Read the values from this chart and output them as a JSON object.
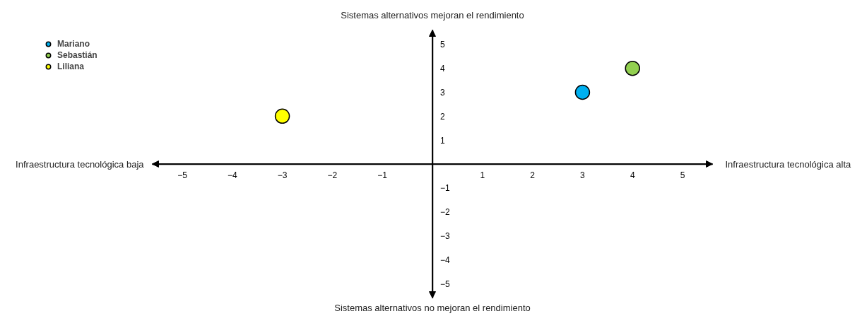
{
  "chart_data": {
    "type": "scatter",
    "xlabel": "Infraestructura tecnológica alta",
    "ylabel": "Sistemas alternativos mejoran el rendimiento",
    "annotations": [
      "Infraestructura tecnológica baja",
      "Sistemas alternativos no mejoran el rendimiento"
    ],
    "series": [
      {
        "name": "Mariano",
        "color": "#00b0f0",
        "x": [
          3
        ],
        "values": [
          3
        ]
      },
      {
        "name": "Sebastián",
        "color": "#92d050",
        "x": [
          4
        ],
        "values": [
          4
        ]
      },
      {
        "name": "Liliana",
        "color": "#ffff00",
        "x": [
          -3
        ],
        "values": [
          2
        ]
      }
    ],
    "xlim": [
      -5.6,
      5.6
    ],
    "ylim": [
      -5.6,
      5.6
    ],
    "xticks": [
      -5,
      -4,
      -3,
      -2,
      -1,
      1,
      2,
      3,
      4,
      5
    ],
    "yticks": [
      -5,
      -4,
      -3,
      -2,
      -1,
      1,
      2,
      3,
      4,
      5
    ],
    "grid": false,
    "legend": "top left",
    "marker": "circle"
  }
}
